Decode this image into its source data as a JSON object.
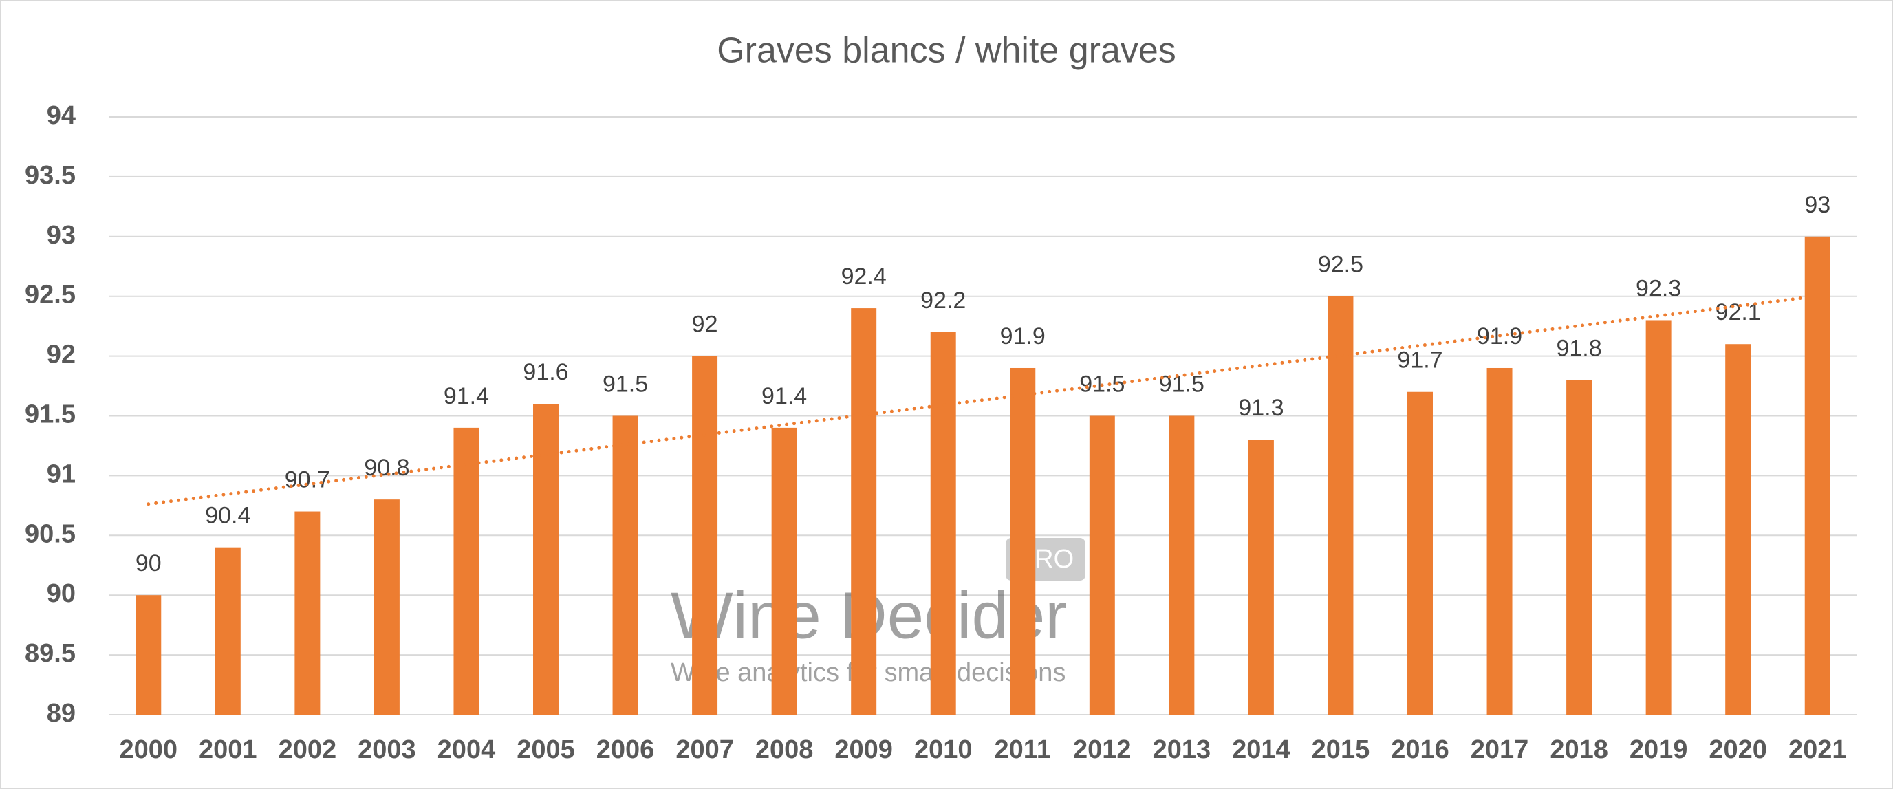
{
  "chart_data": {
    "type": "bar",
    "title": "Graves blancs / white graves",
    "categories": [
      "2000",
      "2001",
      "2002",
      "2003",
      "2004",
      "2005",
      "2006",
      "2007",
      "2008",
      "2009",
      "2010",
      "2011",
      "2012",
      "2013",
      "2014",
      "2015",
      "2016",
      "2017",
      "2018",
      "2019",
      "2020",
      "2021"
    ],
    "values": [
      90,
      90.4,
      90.7,
      90.8,
      91.4,
      91.6,
      91.5,
      92,
      91.4,
      92.4,
      92.2,
      91.9,
      91.5,
      91.5,
      91.3,
      92.5,
      91.7,
      91.9,
      91.8,
      92.3,
      92.1,
      93
    ],
    "color": "#ed7d31",
    "ylim": [
      89,
      94
    ],
    "yticks": [
      89,
      89.5,
      90,
      90.5,
      91,
      91.5,
      92,
      92.5,
      93,
      93.5,
      94
    ],
    "grid": true,
    "data_labels": true,
    "trendline": "linear",
    "trendline_color": "#ed7d31",
    "watermark": {
      "title": "Wine Decider",
      "badge": "PRO",
      "tagline": "Wine analytics for smart decisions"
    }
  }
}
